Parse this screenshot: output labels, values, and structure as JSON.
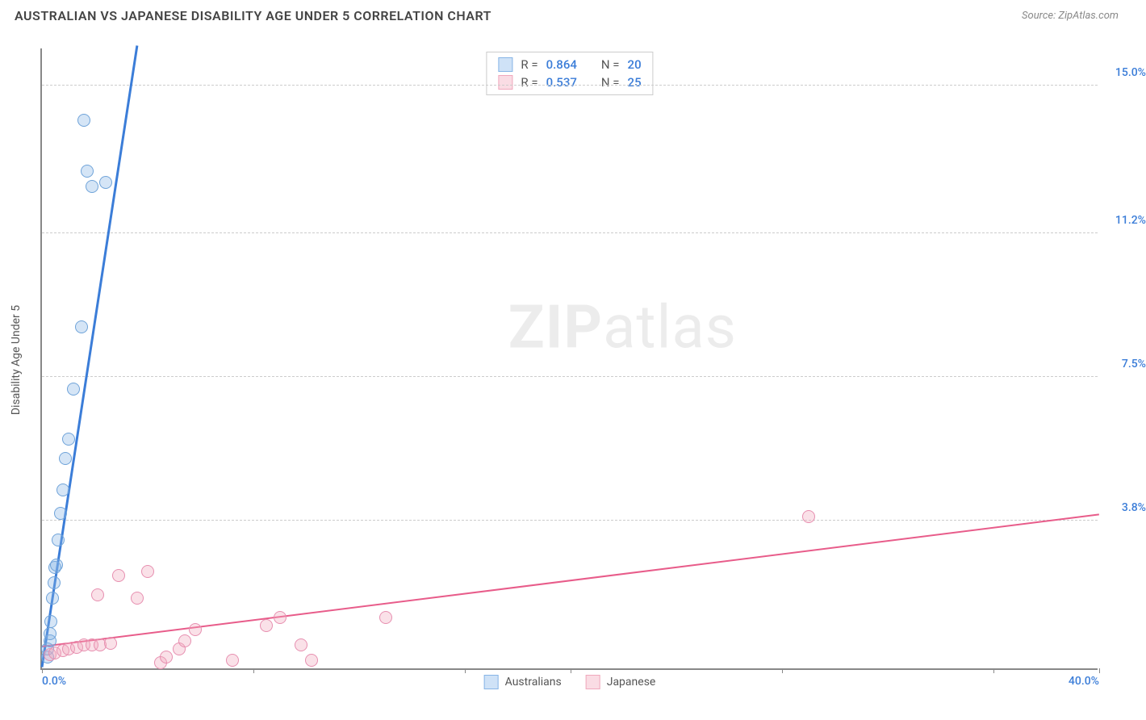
{
  "chart": {
    "type": "scatter",
    "title": "AUSTRALIAN VS JAPANESE DISABILITY AGE UNDER 5 CORRELATION CHART",
    "source_label": "Source: ZipAtlas.com",
    "y_axis_label": "Disability Age Under 5",
    "background_color": "#ffffff",
    "grid_color": "#cccccc",
    "axis_color": "#888888",
    "title_fontsize": 16,
    "label_fontsize": 14,
    "watermark_text_1": "ZIP",
    "watermark_text_2": "atlas",
    "xlim": [
      0,
      40
    ],
    "ylim": [
      0,
      16
    ],
    "x_ticks": [
      0,
      8,
      16,
      20,
      28,
      36,
      40
    ],
    "x_tick_labels": {
      "0": "0.0%",
      "40": "40.0%"
    },
    "y_gridlines": [
      3.8,
      7.5,
      11.2,
      15.0
    ],
    "y_tick_labels": [
      "3.8%",
      "7.5%",
      "11.2%",
      "15.0%"
    ],
    "x_label_color": "#3b7dd8",
    "y_label_color": "#3b7dd8",
    "legend_top": [
      {
        "swatch_fill": "#cfe2f7",
        "swatch_border": "#87b5e6",
        "r_label": "R =",
        "r_value": "0.864",
        "n_label": "N =",
        "n_value": "20",
        "value_color": "#3b7dd8"
      },
      {
        "swatch_fill": "#fadce4",
        "swatch_border": "#f0a8bd",
        "r_label": "R =",
        "r_value": "0.537",
        "n_label": "N =",
        "n_value": "25",
        "value_color": "#3b7dd8"
      }
    ],
    "legend_bottom": [
      {
        "swatch_fill": "#cfe2f7",
        "swatch_border": "#87b5e6",
        "label": "Australians"
      },
      {
        "swatch_fill": "#fadce4",
        "swatch_border": "#f0a8bd",
        "label": "Japanese"
      }
    ],
    "series": [
      {
        "name": "Australians",
        "marker_fill": "rgba(135,181,230,0.35)",
        "marker_border": "#6fa3d9",
        "marker_size": 16,
        "trend_color": "#3b7dd8",
        "trend_width": 3,
        "trend": {
          "x1": 0,
          "y1": 0,
          "x2": 3.6,
          "y2": 16
        },
        "points": [
          [
            0.2,
            0.3
          ],
          [
            0.2,
            0.5
          ],
          [
            0.3,
            0.7
          ],
          [
            0.3,
            0.9
          ],
          [
            0.35,
            1.2
          ],
          [
            0.4,
            1.8
          ],
          [
            0.45,
            2.2
          ],
          [
            0.5,
            2.6
          ],
          [
            0.55,
            2.65
          ],
          [
            0.6,
            3.3
          ],
          [
            0.7,
            4.0
          ],
          [
            0.8,
            4.6
          ],
          [
            0.9,
            5.4
          ],
          [
            1.0,
            5.9
          ],
          [
            1.2,
            7.2
          ],
          [
            1.5,
            8.8
          ],
          [
            1.9,
            12.4
          ],
          [
            1.7,
            12.8
          ],
          [
            2.4,
            12.5
          ],
          [
            1.6,
            14.1
          ]
        ]
      },
      {
        "name": "Japanese",
        "marker_fill": "rgba(240,168,189,0.35)",
        "marker_border": "#e78fb0",
        "marker_size": 16,
        "trend_color": "#e85c8a",
        "trend_width": 2,
        "trend": {
          "x1": 0,
          "y1": 0.55,
          "x2": 40,
          "y2": 3.95
        },
        "points": [
          [
            0.3,
            0.35
          ],
          [
            0.5,
            0.4
          ],
          [
            0.8,
            0.45
          ],
          [
            1.0,
            0.5
          ],
          [
            1.3,
            0.55
          ],
          [
            1.6,
            0.6
          ],
          [
            1.9,
            0.6
          ],
          [
            2.2,
            0.6
          ],
          [
            2.6,
            0.65
          ],
          [
            2.1,
            1.9
          ],
          [
            2.9,
            2.4
          ],
          [
            3.6,
            1.8
          ],
          [
            4.0,
            2.5
          ],
          [
            4.5,
            0.15
          ],
          [
            4.7,
            0.3
          ],
          [
            5.2,
            0.5
          ],
          [
            5.4,
            0.7
          ],
          [
            5.8,
            1.0
          ],
          [
            7.2,
            0.2
          ],
          [
            8.5,
            1.1
          ],
          [
            9.0,
            1.3
          ],
          [
            9.8,
            0.6
          ],
          [
            10.2,
            0.2
          ],
          [
            13.0,
            1.3
          ],
          [
            29.0,
            3.9
          ]
        ]
      }
    ]
  }
}
